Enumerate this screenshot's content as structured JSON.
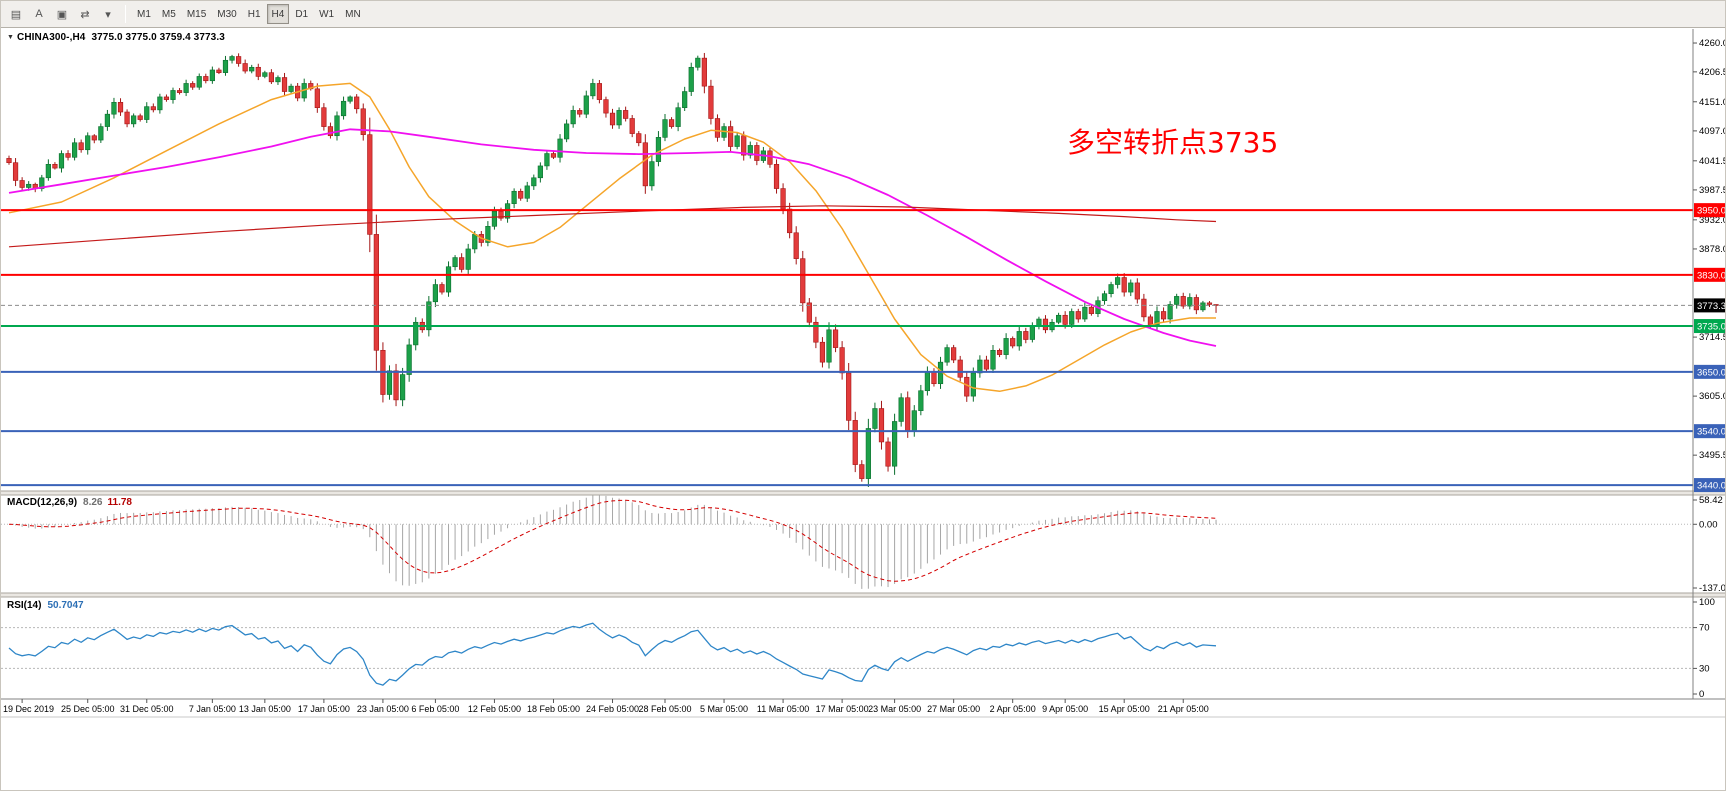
{
  "toolbar": {
    "icons": [
      {
        "name": "indicator-list-icon",
        "glyph": "▤"
      },
      {
        "name": "auto-scroll-button",
        "glyph": "A"
      },
      {
        "name": "tile-windows-icon",
        "glyph": "▣"
      },
      {
        "name": "chart-shift-icon",
        "glyph": "⇄"
      },
      {
        "name": "dropdown-caret-icon",
        "glyph": "▾"
      }
    ],
    "timeframes": [
      "M1",
      "M5",
      "M15",
      "M30",
      "H1",
      "H4",
      "D1",
      "W1",
      "MN"
    ],
    "selected_timeframe": "H4"
  },
  "chart": {
    "marker": "▼",
    "symbol_period": "CHINA300-,H4",
    "ohlc_text": "3775.0 3775.0 3759.4 3773.3",
    "annotation": {
      "text": "多空转折点3735",
      "color": "#FF0000"
    }
  },
  "price_scale": {
    "ticks": [
      4260.0,
      4206.5,
      4151.0,
      4097.0,
      4041.5,
      3987.5,
      3932.0,
      3878.0,
      3714.5,
      3605.0,
      3495.5
    ]
  },
  "current_price": {
    "value": "3773.3",
    "price": 3773.3,
    "badge_color": "#000000",
    "line_color": "#8c8c8c"
  },
  "hlines": [
    {
      "price": 3950.0,
      "label": "3950.0",
      "color": "#FF0000"
    },
    {
      "price": 3830.0,
      "label": "3830.0",
      "color": "#FF0000"
    },
    {
      "price": 3735.0,
      "label": "3735.0",
      "color": "#00A84F"
    },
    {
      "price": 3650.0,
      "label": "3650.0",
      "color": "#3A62B8"
    },
    {
      "price": 3540.0,
      "label": "3540.0",
      "color": "#3A62B8"
    },
    {
      "price": 3440.0,
      "label": "3440.0",
      "color": "#3A62B8"
    }
  ],
  "macd_panel": {
    "title": "MACD(12,26,9)",
    "value_main": "8.26",
    "value_signal": "11.78",
    "scale": [
      "58.42",
      "0.00",
      "-137.09"
    ]
  },
  "rsi_panel": {
    "title": "RSI(14)",
    "value": "50.7047",
    "scale": [
      "100",
      "70",
      "30",
      "0"
    ],
    "levels": [
      70,
      30
    ]
  },
  "time_axis": {
    "labels": [
      [
        "19 Dec 2019",
        2
      ],
      [
        "25 Dec 05:00",
        12
      ],
      [
        "31 Dec 05:00",
        21
      ],
      [
        "7 Jan 05:00",
        31
      ],
      [
        "13 Jan 05:00",
        39
      ],
      [
        "17 Jan 05:00",
        48
      ],
      [
        "23 Jan 05:00",
        57
      ],
      [
        "6 Feb 05:00",
        65
      ],
      [
        "12 Feb 05:00",
        74
      ],
      [
        "18 Feb 05:00",
        83
      ],
      [
        "24 Feb 05:00",
        92
      ],
      [
        "28 Feb 05:00",
        100
      ],
      [
        "5 Mar 05:00",
        109
      ],
      [
        "11 Mar 05:00",
        118
      ],
      [
        "17 Mar 05:00",
        127
      ],
      [
        "23 Mar 05:00",
        135
      ],
      [
        "27 Mar 05:00",
        144
      ],
      [
        "2 Apr 05:00",
        153
      ],
      [
        "9 Apr 05:00",
        161
      ],
      [
        "15 Apr 05:00",
        170
      ],
      [
        "21 Apr 05:00",
        179
      ]
    ]
  },
  "chart_data": {
    "type": "candlestick",
    "symbol": "CHINA300-",
    "timeframe": "H4",
    "title": "CHINA300-,H4",
    "price_range": [
      3429,
      4286
    ],
    "first_open": 4046,
    "last_ohlc": [
      3775.0,
      3775.0,
      3759.4,
      3773.3
    ],
    "closes": [
      4038,
      4005,
      3992,
      3998,
      3990,
      4010,
      4035,
      4028,
      4055,
      4048,
      4075,
      4062,
      4088,
      4080,
      4105,
      4128,
      4150,
      4132,
      4110,
      4125,
      4118,
      4142,
      4136,
      4160,
      4155,
      4172,
      4168,
      4185,
      4178,
      4198,
      4190,
      4210,
      4205,
      4228,
      4235,
      4222,
      4208,
      4215,
      4198,
      4205,
      4188,
      4196,
      4170,
      4180,
      4158,
      4185,
      4175,
      4140,
      4105,
      4088,
      4125,
      4152,
      4160,
      4138,
      4090,
      3905,
      3690,
      3608,
      3652,
      3598,
      3645,
      3700,
      3742,
      3728,
      3780,
      3812,
      3798,
      3845,
      3862,
      3840,
      3878,
      3905,
      3890,
      3920,
      3948,
      3935,
      3962,
      3985,
      3972,
      3995,
      4010,
      4032,
      4055,
      4048,
      4082,
      4110,
      4135,
      4128,
      4162,
      4185,
      4155,
      4130,
      4108,
      4135,
      4120,
      4092,
      4075,
      3995,
      4040,
      4085,
      4118,
      4105,
      4140,
      4170,
      4215,
      4232,
      4180,
      4120,
      4085,
      4105,
      4068,
      4088,
      4052,
      4070,
      4042,
      4060,
      4035,
      3990,
      3952,
      3908,
      3860,
      3778,
      3742,
      3705,
      3668,
      3728,
      3695,
      3648,
      3560,
      3478,
      3452,
      3545,
      3582,
      3520,
      3475,
      3558,
      3602,
      3540,
      3578,
      3615,
      3650,
      3628,
      3668,
      3695,
      3672,
      3640,
      3605,
      3648,
      3672,
      3655,
      3690,
      3682,
      3712,
      3698,
      3725,
      3710,
      3735,
      3748,
      3728,
      3742,
      3755,
      3738,
      3762,
      3748,
      3770,
      3758,
      3782,
      3795,
      3812,
      3825,
      3798,
      3815,
      3785,
      3752,
      3735,
      3762,
      3748,
      3775,
      3790,
      3772,
      3788,
      3765,
      3778,
      3775,
      3773.3
    ],
    "ma_lines": [
      {
        "name": "ma-fast-orange",
        "color": "#F5A52A",
        "width": 1.5,
        "points": [
          [
            0,
            3945
          ],
          [
            8,
            3965
          ],
          [
            16,
            4010
          ],
          [
            24,
            4060
          ],
          [
            32,
            4110
          ],
          [
            40,
            4155
          ],
          [
            47,
            4180
          ],
          [
            52,
            4185
          ],
          [
            55,
            4160
          ],
          [
            58,
            4100
          ],
          [
            61,
            4030
          ],
          [
            64,
            3975
          ],
          [
            68,
            3930
          ],
          [
            72,
            3898
          ],
          [
            76,
            3882
          ],
          [
            80,
            3890
          ],
          [
            84,
            3918
          ],
          [
            88,
            3958
          ],
          [
            93,
            4008
          ],
          [
            98,
            4052
          ],
          [
            103,
            4082
          ],
          [
            107,
            4098
          ],
          [
            111,
            4094
          ],
          [
            115,
            4076
          ],
          [
            119,
            4040
          ],
          [
            123,
            3986
          ],
          [
            127,
            3916
          ],
          [
            131,
            3832
          ],
          [
            135,
            3748
          ],
          [
            139,
            3682
          ],
          [
            143,
            3642
          ],
          [
            147,
            3620
          ],
          [
            151,
            3614
          ],
          [
            155,
            3624
          ],
          [
            159,
            3644
          ],
          [
            163,
            3672
          ],
          [
            167,
            3700
          ],
          [
            171,
            3724
          ],
          [
            175,
            3740
          ],
          [
            180,
            3750
          ],
          [
            184,
            3750
          ]
        ]
      },
      {
        "name": "ma-mid-magenta",
        "color": "#F010F0",
        "width": 1.8,
        "points": [
          [
            0,
            3982
          ],
          [
            8,
            3998
          ],
          [
            16,
            4014
          ],
          [
            24,
            4030
          ],
          [
            32,
            4048
          ],
          [
            40,
            4068
          ],
          [
            46,
            4086
          ],
          [
            52,
            4100
          ],
          [
            58,
            4096
          ],
          [
            64,
            4086
          ],
          [
            72,
            4072
          ],
          [
            80,
            4062
          ],
          [
            88,
            4056
          ],
          [
            96,
            4054
          ],
          [
            104,
            4056
          ],
          [
            110,
            4058
          ],
          [
            116,
            4050
          ],
          [
            122,
            4035
          ],
          [
            128,
            4010
          ],
          [
            134,
            3978
          ],
          [
            140,
            3940
          ],
          [
            146,
            3900
          ],
          [
            152,
            3858
          ],
          [
            158,
            3818
          ],
          [
            164,
            3780
          ],
          [
            170,
            3748
          ],
          [
            176,
            3722
          ],
          [
            180,
            3708
          ],
          [
            184,
            3698
          ]
        ]
      },
      {
        "name": "ma-slow-red",
        "color": "#C41A1A",
        "width": 1.2,
        "points": [
          [
            0,
            3882
          ],
          [
            16,
            3896
          ],
          [
            32,
            3910
          ],
          [
            48,
            3922
          ],
          [
            64,
            3932
          ],
          [
            80,
            3940
          ],
          [
            96,
            3948
          ],
          [
            112,
            3955
          ],
          [
            124,
            3958
          ],
          [
            136,
            3956
          ],
          [
            148,
            3950
          ],
          [
            160,
            3944
          ],
          [
            170,
            3938
          ],
          [
            178,
            3932
          ],
          [
            184,
            3929
          ]
        ]
      }
    ],
    "indicators": {
      "macd": {
        "params": [
          12,
          26,
          9
        ],
        "range": [
          -137.09,
          58.42
        ],
        "current_main": 8.26,
        "current_signal": 11.78
      },
      "rsi": {
        "params": [
          14
        ],
        "range": [
          0,
          100
        ],
        "levels": [
          70,
          30
        ],
        "current": 50.7047
      }
    }
  },
  "colors": {
    "bull": "#1CA049",
    "bull_edge": "#0B6E2E",
    "bear": "#E23B3B",
    "bear_edge": "#A31515",
    "macd_hist": "#a6a6a6",
    "macd_signal": "#D40000",
    "rsi_line": "#2E86C8",
    "panel_border": "#808080",
    "separator_fill": "#eae7e2",
    "level_dotted": "#b8b8b8",
    "axis_text": "#000000"
  }
}
